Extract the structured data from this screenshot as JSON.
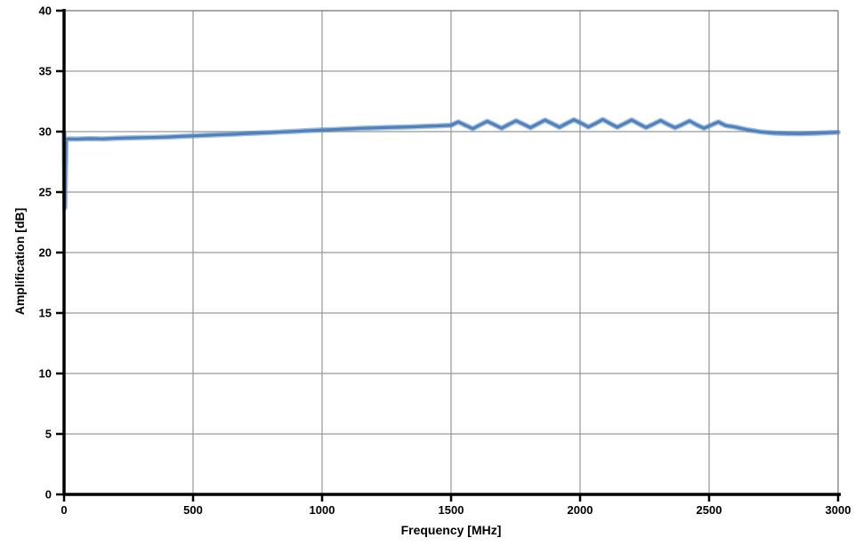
{
  "colors": {
    "series": "#4F81BD",
    "gridline": "#969696",
    "border": "#808080",
    "axis": "#000000",
    "text": "#000000",
    "background": "#FFFFFF"
  },
  "chart_data": {
    "type": "line",
    "title": "",
    "xlabel": "Frequency [MHz]",
    "ylabel": "Amplification [dB]",
    "xlim": [
      0,
      3000
    ],
    "ylim": [
      0,
      40
    ],
    "x_ticks": [
      0,
      500,
      1000,
      1500,
      2000,
      2500,
      3000
    ],
    "y_ticks": [
      0,
      5,
      10,
      15,
      20,
      25,
      30,
      35,
      40
    ],
    "grid": true,
    "legend": false,
    "plot_border": "top-right",
    "series": [
      {
        "name": "Amplification",
        "x": [
          0,
          3,
          8,
          50,
          100,
          150,
          200,
          250,
          300,
          350,
          400,
          450,
          500,
          550,
          600,
          650,
          700,
          750,
          800,
          850,
          900,
          950,
          1000,
          1050,
          1100,
          1150,
          1200,
          1250,
          1300,
          1350,
          1400,
          1450,
          1500,
          1528,
          1556,
          1584,
          1612,
          1640,
          1668,
          1696,
          1724,
          1752,
          1780,
          1808,
          1836,
          1864,
          1892,
          1920,
          1948,
          1976,
          2004,
          2032,
          2060,
          2088,
          2116,
          2144,
          2172,
          2200,
          2228,
          2256,
          2284,
          2312,
          2340,
          2368,
          2396,
          2424,
          2452,
          2480,
          2508,
          2536,
          2564,
          2600,
          2650,
          2700,
          2750,
          2800,
          2850,
          2900,
          2950,
          3000
        ],
        "y": [
          29.9,
          23.7,
          29.4,
          29.38,
          29.42,
          29.4,
          29.45,
          29.48,
          29.5,
          29.52,
          29.55,
          29.6,
          29.65,
          29.7,
          29.74,
          29.78,
          29.83,
          29.88,
          29.93,
          29.98,
          30.03,
          30.09,
          30.14,
          30.18,
          30.22,
          30.27,
          30.3,
          30.34,
          30.37,
          30.4,
          30.44,
          30.48,
          30.52,
          30.8,
          30.52,
          30.24,
          30.55,
          30.85,
          30.57,
          30.28,
          30.6,
          30.9,
          30.62,
          30.32,
          30.64,
          30.95,
          30.66,
          30.36,
          30.68,
          30.98,
          30.7,
          30.38,
          30.68,
          31.0,
          30.68,
          30.36,
          30.66,
          30.96,
          30.64,
          30.34,
          30.62,
          30.92,
          30.6,
          30.32,
          30.58,
          30.88,
          30.56,
          30.28,
          30.54,
          30.8,
          30.5,
          30.38,
          30.15,
          29.98,
          29.88,
          29.84,
          29.82,
          29.85,
          29.9,
          29.95
        ]
      }
    ]
  }
}
